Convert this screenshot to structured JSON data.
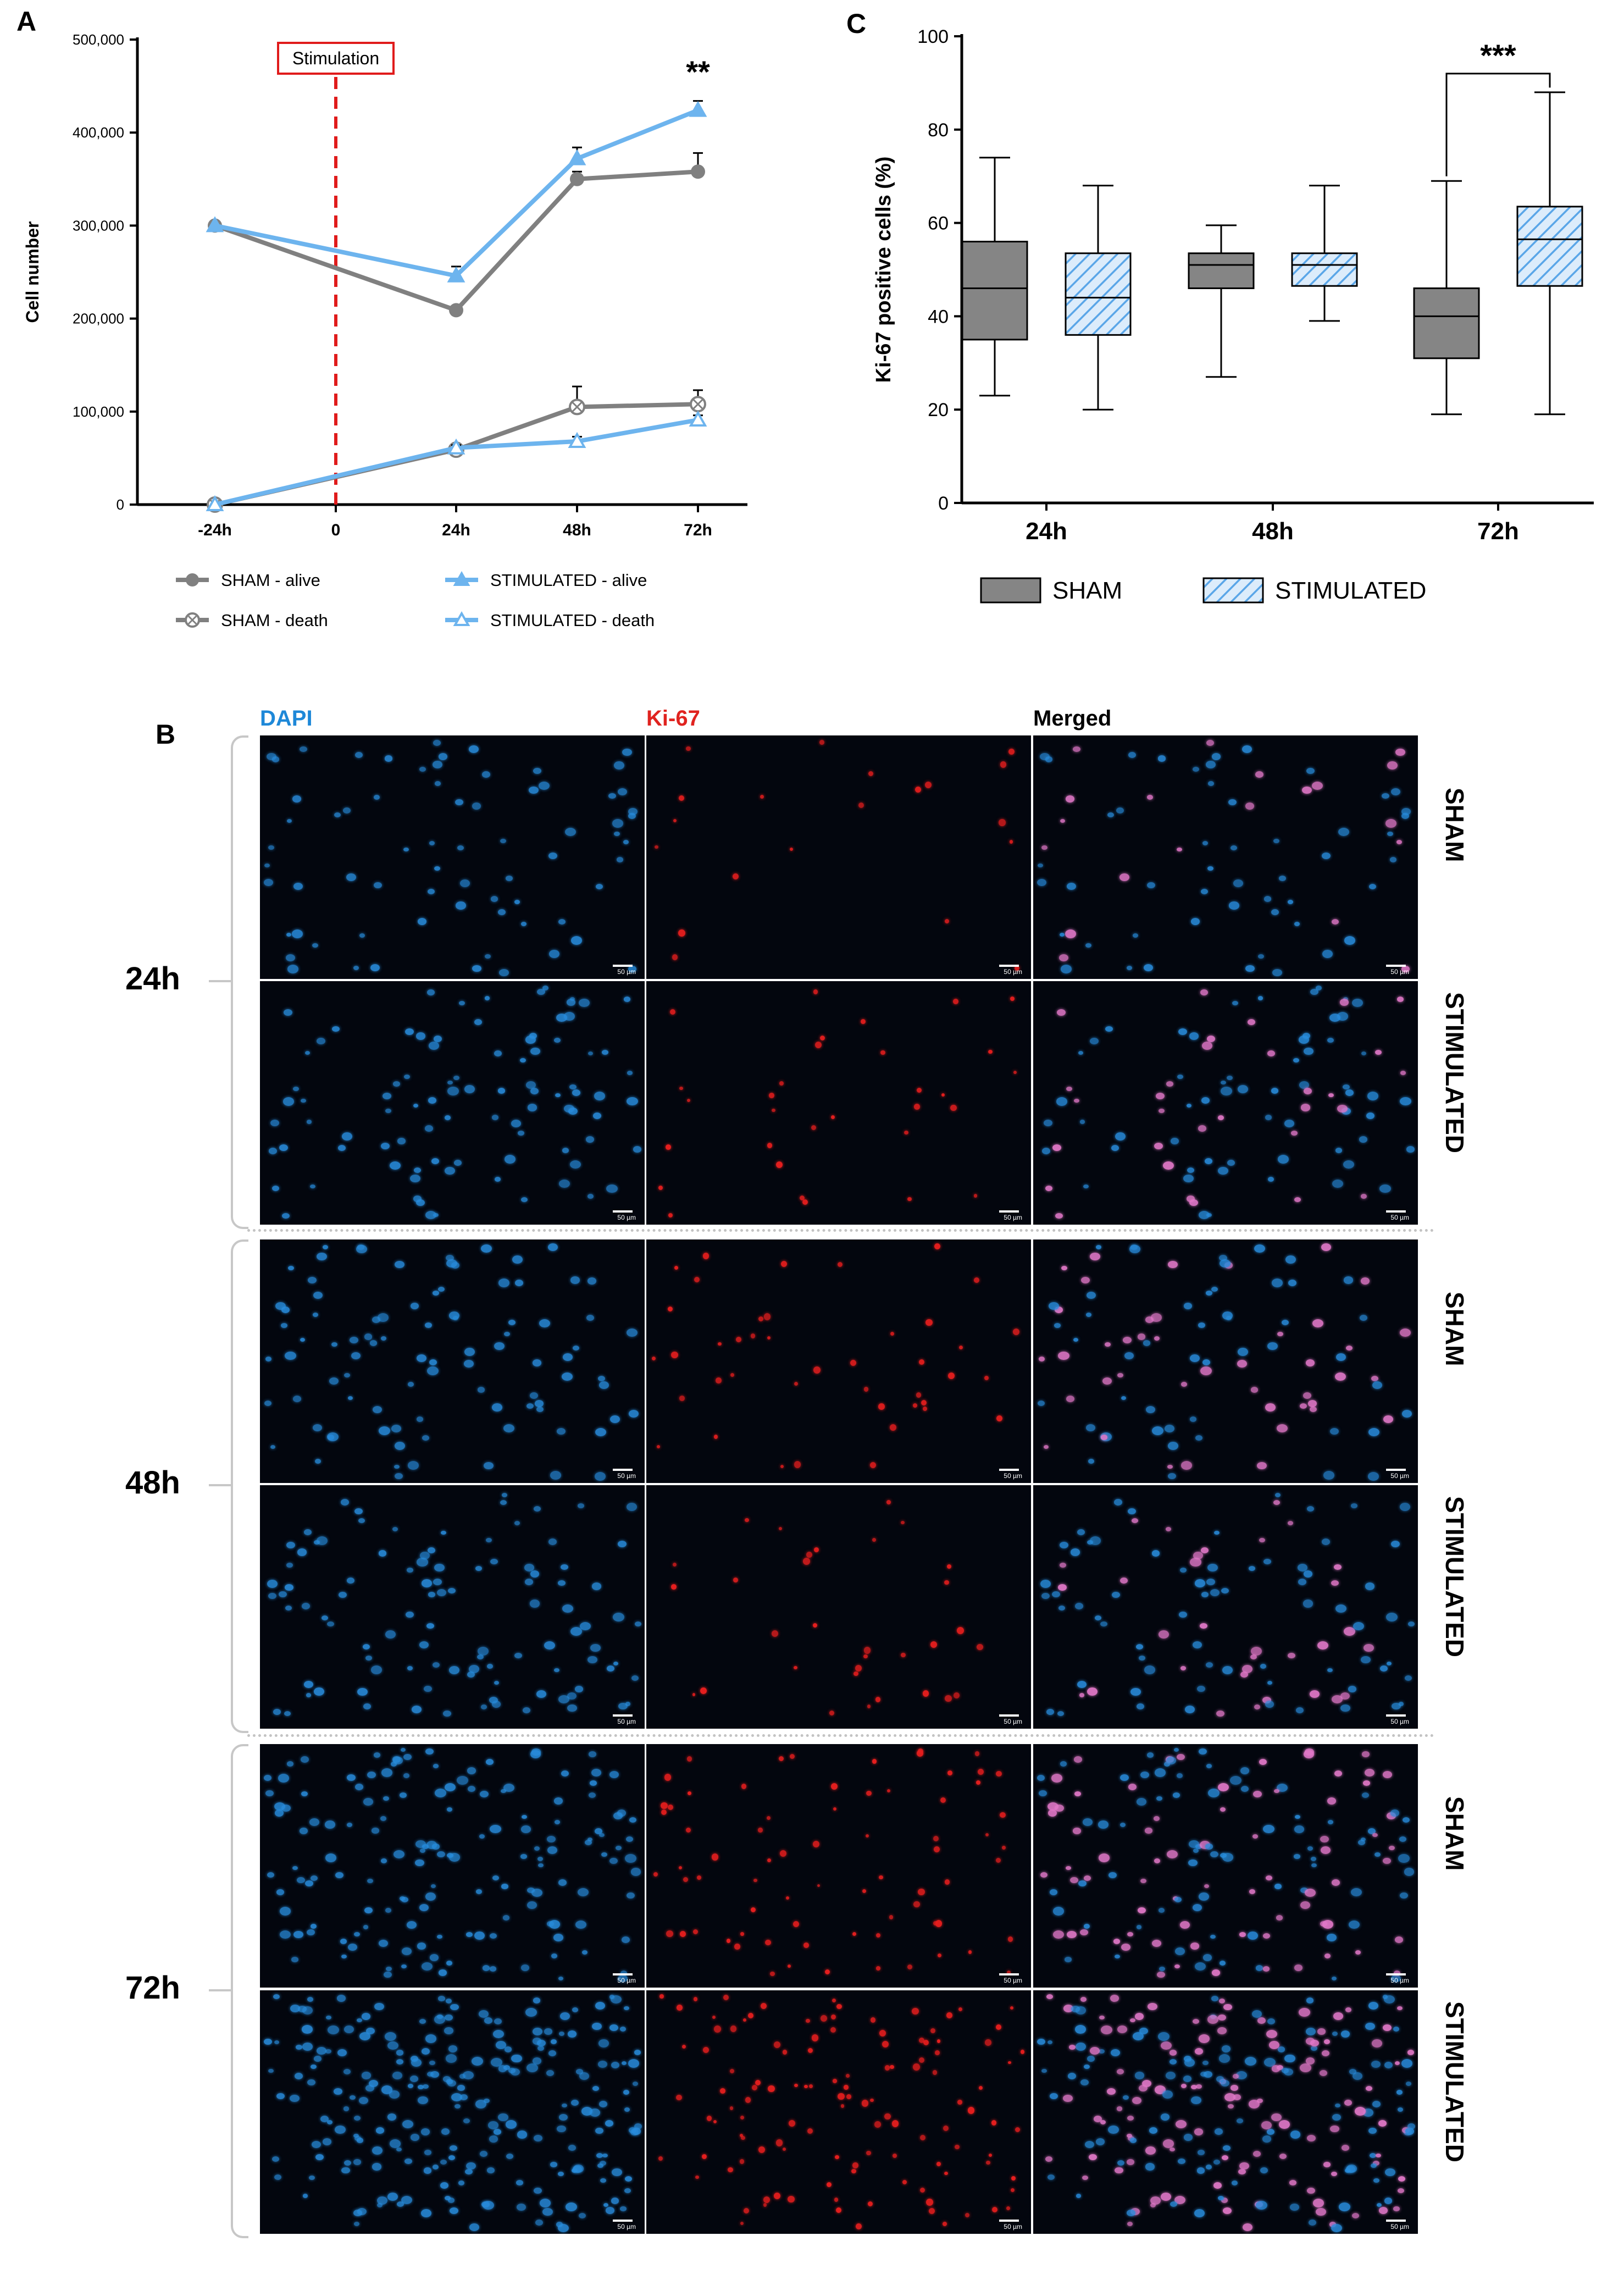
{
  "panels": {
    "a": "A",
    "b": "B",
    "c": "C"
  },
  "chart_data": [
    {
      "type": "line",
      "panel": "A",
      "ylabel": "Cell number",
      "xlabel": "",
      "categories": [
        "-24h",
        "0",
        "24h",
        "48h",
        "72h"
      ],
      "yticks": [
        "0",
        "100,000",
        "200,000",
        "300,000",
        "400,000",
        "500,000"
      ],
      "ylim": [
        0,
        500000
      ],
      "annotation": "Stimulation",
      "significance": "**",
      "series": [
        {
          "name": "SHAM - alive",
          "color": "#808080",
          "marker": "circle",
          "points": [
            {
              "x": "-24h",
              "y": 300000
            },
            {
              "x": "24h",
              "y": 209000,
              "err": 3000
            },
            {
              "x": "48h",
              "y": 350000,
              "err": 8000
            },
            {
              "x": "72h",
              "y": 358000,
              "err": 20000
            }
          ]
        },
        {
          "name": "SHAM - death",
          "color": "#808080",
          "marker": "circle-x",
          "points": [
            {
              "x": "-24h",
              "y": 0
            },
            {
              "x": "24h",
              "y": 59000,
              "err": 3000
            },
            {
              "x": "48h",
              "y": 105000,
              "err": 22000
            },
            {
              "x": "72h",
              "y": 108000,
              "err": 15000
            }
          ]
        },
        {
          "name": "STIMULATED - alive",
          "color": "#6db4ee",
          "marker": "triangle-filled",
          "points": [
            {
              "x": "-24h",
              "y": 300000
            },
            {
              "x": "24h",
              "y": 246000,
              "err": 10000
            },
            {
              "x": "48h",
              "y": 372000,
              "err": 12000
            },
            {
              "x": "72h",
              "y": 424000,
              "err": 10000
            }
          ]
        },
        {
          "name": "STIMULATED - death",
          "color": "#6db4ee",
          "marker": "triangle-open",
          "points": [
            {
              "x": "-24h",
              "y": 0
            },
            {
              "x": "24h",
              "y": 61000,
              "err": 3000
            },
            {
              "x": "48h",
              "y": 68000,
              "err": 5000
            },
            {
              "x": "72h",
              "y": 91000,
              "err": 5000
            }
          ]
        }
      ]
    },
    {
      "type": "box",
      "panel": "C",
      "ylabel": "Ki-67 positive cells (%)",
      "categories": [
        "24h",
        "48h",
        "72h"
      ],
      "yticks": [
        "0",
        "20",
        "40",
        "60",
        "80",
        "100"
      ],
      "ylim": [
        0,
        100
      ],
      "significance": "***",
      "series": [
        {
          "name": "SHAM",
          "color": "#858585",
          "pattern": "solid",
          "boxes": [
            {
              "min": 23,
              "q1": 35,
              "median": 46,
              "q3": 56,
              "max": 74
            },
            {
              "min": 27,
              "q1": 46,
              "median": 51,
              "q3": 53.5,
              "max": 59.5
            },
            {
              "min": 19,
              "q1": 31,
              "median": 40,
              "q3": 46,
              "max": 69
            }
          ]
        },
        {
          "name": "STIMULATED",
          "color": "#6db4ee",
          "pattern": "hatched",
          "boxes": [
            {
              "min": 20,
              "q1": 36,
              "median": 44,
              "q3": 53.5,
              "max": 68
            },
            {
              "min": 39,
              "q1": 46.5,
              "median": 51,
              "q3": 53.5,
              "max": 68
            },
            {
              "min": 19,
              "q1": 46.5,
              "median": 56.5,
              "q3": 63.5,
              "max": 88
            }
          ]
        }
      ]
    }
  ],
  "micrographs": {
    "columns": [
      {
        "label": "DAPI",
        "color": "#1e88d8"
      },
      {
        "label": "Ki-67",
        "color": "#e0231f"
      },
      {
        "label": "Merged",
        "color": "#000000"
      }
    ],
    "timepoints": [
      "24h",
      "48h",
      "72h"
    ],
    "conditions": [
      "SHAM",
      "STIMULATED"
    ],
    "scale_label": "50 µm"
  }
}
